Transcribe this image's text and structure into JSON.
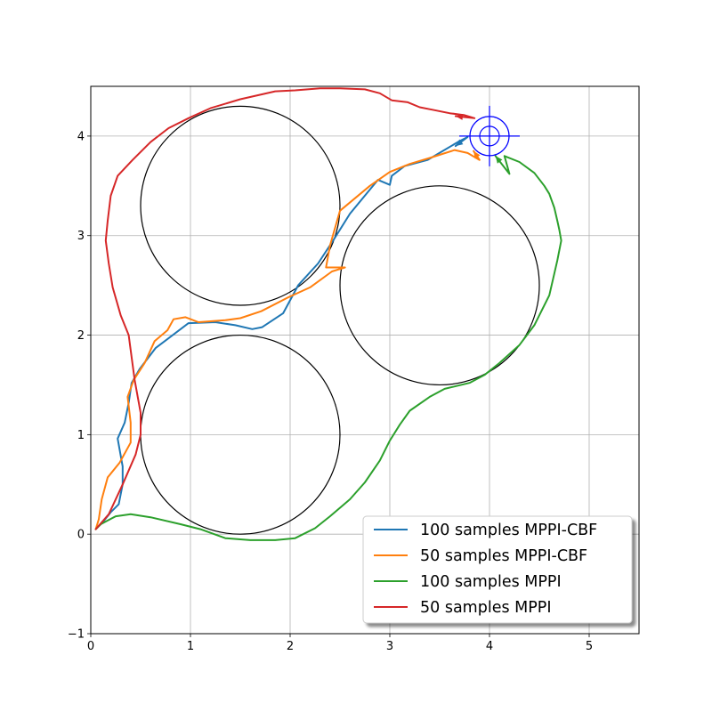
{
  "chart_data": {
    "type": "line",
    "title": "",
    "xlabel": "",
    "ylabel": "",
    "xlim": [
      0,
      5.5
    ],
    "ylim": [
      -1,
      4.5
    ],
    "xticks": [
      "0",
      "1",
      "2",
      "3",
      "4",
      "5"
    ],
    "yticks": [
      "−1",
      "0",
      "1",
      "2",
      "3",
      "4"
    ],
    "grid": true,
    "legend_position": "lower-right",
    "obstacles": [
      {
        "cx": 1.5,
        "cy": 3.3,
        "r": 1.0
      },
      {
        "cx": 1.5,
        "cy": 1.0,
        "r": 1.0
      },
      {
        "cx": 3.5,
        "cy": 2.5,
        "r": 1.0
      }
    ],
    "goal": {
      "x": 4.0,
      "y": 4.0,
      "marker_color": "#0000ff"
    },
    "series": [
      {
        "name": "100 samples MPPI-CBF",
        "color": "#1f77b4",
        "x": [
          0.05,
          0.12,
          0.2,
          0.28,
          0.32,
          0.32,
          0.27,
          0.34,
          0.38,
          0.41,
          0.49,
          0.65,
          0.98,
          1.25,
          1.45,
          1.62,
          1.72,
          1.93,
          2.08,
          2.28,
          2.45,
          2.6,
          2.88,
          3.0,
          3.02,
          3.15,
          3.38,
          3.48,
          3.7,
          3.78,
          3.66
        ],
        "y": [
          0.05,
          0.12,
          0.22,
          0.3,
          0.5,
          0.68,
          0.96,
          1.12,
          1.32,
          1.52,
          1.66,
          1.87,
          2.12,
          2.13,
          2.1,
          2.06,
          2.08,
          2.22,
          2.5,
          2.72,
          2.98,
          3.22,
          3.56,
          3.51,
          3.6,
          3.7,
          3.76,
          3.82,
          3.95,
          3.99,
          3.9
        ]
      },
      {
        "name": "50 samples MPPI-CBF",
        "color": "#ff7f0e",
        "x": [
          0.05,
          0.08,
          0.11,
          0.17,
          0.29,
          0.4,
          0.4,
          0.37,
          0.43,
          0.54,
          0.64,
          0.77,
          0.83,
          0.95,
          1.08,
          1.35,
          1.5,
          1.71,
          1.98,
          2.2,
          2.42,
          2.55,
          2.36,
          2.4,
          2.5,
          2.8,
          3.0,
          3.2,
          3.4,
          3.65,
          3.78,
          3.9,
          3.84
        ],
        "y": [
          0.05,
          0.15,
          0.35,
          0.57,
          0.72,
          0.92,
          1.12,
          1.38,
          1.55,
          1.72,
          1.94,
          2.05,
          2.16,
          2.18,
          2.13,
          2.15,
          2.17,
          2.24,
          2.38,
          2.48,
          2.64,
          2.68,
          2.68,
          2.9,
          3.25,
          3.5,
          3.64,
          3.72,
          3.78,
          3.86,
          3.83,
          3.76,
          3.85
        ]
      },
      {
        "name": "100 samples MPPI",
        "color": "#2ca02c",
        "x": [
          0.05,
          0.1,
          0.25,
          0.4,
          0.6,
          0.9,
          1.1,
          1.35,
          1.6,
          1.85,
          2.05,
          2.25,
          2.4,
          2.6,
          2.75,
          2.9,
          3.0,
          3.1,
          3.2,
          3.4,
          3.55,
          3.8,
          3.95,
          4.1,
          4.3,
          4.45,
          4.6,
          4.68,
          4.72,
          4.7,
          4.68,
          4.65,
          4.6,
          4.55,
          4.45,
          4.3,
          4.15,
          4.2,
          4.06
        ],
        "y": [
          0.05,
          0.1,
          0.18,
          0.2,
          0.17,
          0.1,
          0.05,
          -0.04,
          -0.06,
          -0.06,
          -0.04,
          0.06,
          0.18,
          0.35,
          0.52,
          0.74,
          0.94,
          1.1,
          1.24,
          1.38,
          1.46,
          1.52,
          1.6,
          1.72,
          1.9,
          2.1,
          2.4,
          2.75,
          2.95,
          3.06,
          3.15,
          3.28,
          3.42,
          3.5,
          3.63,
          3.74,
          3.8,
          3.62,
          3.8
        ]
      },
      {
        "name": "50 samples MPPI",
        "color": "#d62728",
        "x": [
          0.05,
          0.18,
          0.32,
          0.45,
          0.5,
          0.5,
          0.44,
          0.4,
          0.38,
          0.3,
          0.22,
          0.18,
          0.15,
          0.17,
          0.2,
          0.27,
          0.42,
          0.6,
          0.78,
          0.98,
          1.2,
          1.5,
          1.85,
          2.05,
          2.3,
          2.5,
          2.75,
          2.9,
          3.02,
          3.18,
          3.3,
          3.45,
          3.6,
          3.75,
          3.85,
          3.66
        ],
        "y": [
          0.05,
          0.2,
          0.5,
          0.8,
          1.0,
          1.22,
          1.55,
          1.85,
          2.0,
          2.2,
          2.48,
          2.72,
          2.95,
          3.15,
          3.4,
          3.6,
          3.76,
          3.94,
          4.08,
          4.18,
          4.28,
          4.37,
          4.45,
          4.46,
          4.48,
          4.48,
          4.47,
          4.43,
          4.36,
          4.34,
          4.29,
          4.26,
          4.23,
          4.21,
          4.18,
          4.2
        ]
      }
    ]
  }
}
